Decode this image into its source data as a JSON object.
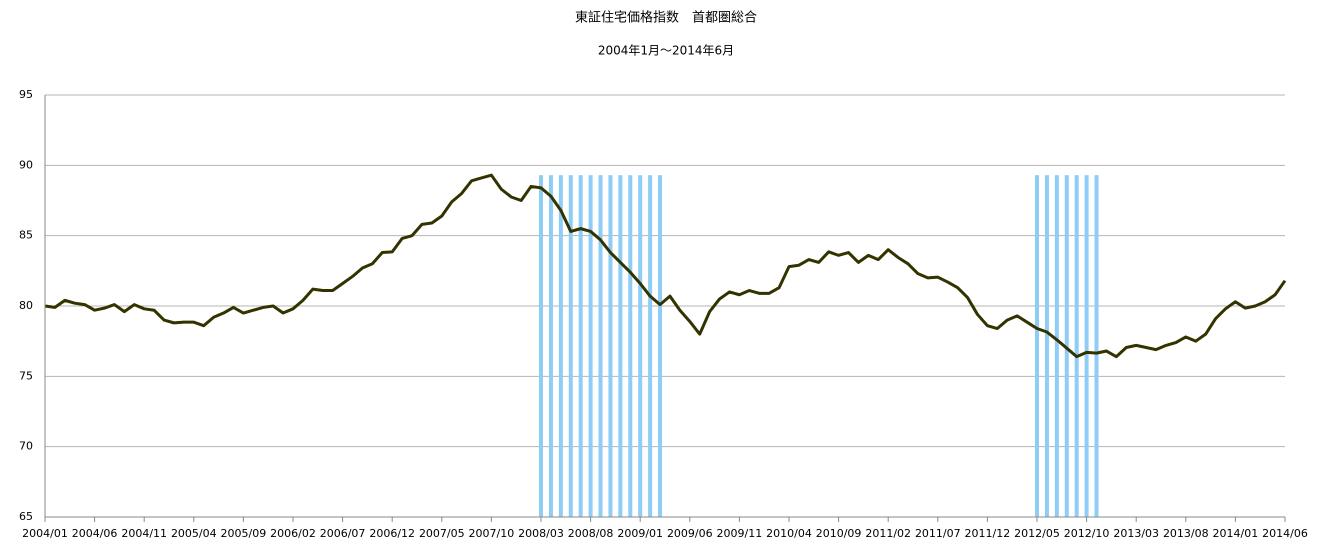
{
  "chart_data": {
    "type": "line",
    "title": "東証住宅価格指数　首都圏総合",
    "subtitle": "2004年1月～2014年6月",
    "categories": [
      "2004/01",
      null,
      null,
      null,
      null,
      "2004/06",
      null,
      null,
      null,
      null,
      "2004/11",
      null,
      null,
      null,
      null,
      "2005/04",
      null,
      null,
      null,
      null,
      "2005/09",
      null,
      null,
      null,
      null,
      "2006/02",
      null,
      null,
      null,
      null,
      "2006/07",
      null,
      null,
      null,
      null,
      "2006/12",
      null,
      null,
      null,
      null,
      "2007/05",
      null,
      null,
      null,
      null,
      "2007/10",
      null,
      null,
      null,
      null,
      "2008/03",
      null,
      null,
      null,
      null,
      "2008/08",
      null,
      null,
      null,
      null,
      "2009/01",
      null,
      null,
      null,
      null,
      "2009/06",
      null,
      null,
      null,
      null,
      "2009/11",
      null,
      null,
      null,
      null,
      "2010/04",
      null,
      null,
      null,
      null,
      "2010/09",
      null,
      null,
      null,
      null,
      "2011/02",
      null,
      null,
      null,
      null,
      "2011/07",
      null,
      null,
      null,
      null,
      "2011/12",
      null,
      null,
      null,
      null,
      "2012/05",
      null,
      null,
      null,
      null,
      "2012/10",
      null,
      null,
      null,
      null,
      "2013/03",
      null,
      null,
      null,
      null,
      "2013/08",
      null,
      null,
      null,
      null,
      "2014/01",
      null,
      null,
      null,
      null,
      "2014/06"
    ],
    "series": [
      {
        "type": "line",
        "color": "#333300",
        "values": [
          80.0,
          79.9,
          80.4,
          80.2,
          80.1,
          79.7,
          79.85,
          80.1,
          79.6,
          80.1,
          79.8,
          79.7,
          79.0,
          78.8,
          78.85,
          78.85,
          78.6,
          79.2,
          79.5,
          79.9,
          79.5,
          79.7,
          79.9,
          80.0,
          79.5,
          79.8,
          80.4,
          81.2,
          81.1,
          81.1,
          81.6,
          82.1,
          82.7,
          83.0,
          83.8,
          83.85,
          84.8,
          85.0,
          85.8,
          85.9,
          86.4,
          87.4,
          88.0,
          88.9,
          89.1,
          89.3,
          88.3,
          87.75,
          87.5,
          88.5,
          88.4,
          87.8,
          86.8,
          85.3,
          85.5,
          85.3,
          84.7,
          83.8,
          83.1,
          82.4,
          81.6,
          80.7,
          80.1,
          80.7,
          79.7,
          78.9,
          78.0,
          79.6,
          80.5,
          81.0,
          80.8,
          81.1,
          80.9,
          80.9,
          81.3,
          82.8,
          82.9,
          83.3,
          83.1,
          83.85,
          83.6,
          83.8,
          83.1,
          83.6,
          83.3,
          84.0,
          83.45,
          83.0,
          82.3,
          82.0,
          82.05,
          81.7,
          81.3,
          80.6,
          79.4,
          78.6,
          78.4,
          79.0,
          79.3,
          78.85,
          78.4,
          78.15,
          77.6,
          77.0,
          76.4,
          76.7,
          76.65,
          76.8,
          76.4,
          77.05,
          77.2,
          77.05,
          76.9,
          77.2,
          77.4,
          77.8,
          77.5,
          78.0,
          79.1,
          79.8,
          80.3,
          79.85,
          80.0,
          80.3,
          80.8,
          81.8
        ]
      },
      {
        "type": "bar",
        "color": "#8ecdf5",
        "values": [
          null,
          null,
          null,
          null,
          null,
          null,
          null,
          null,
          null,
          null,
          null,
          null,
          null,
          null,
          null,
          null,
          null,
          null,
          null,
          null,
          null,
          null,
          null,
          null,
          null,
          null,
          null,
          null,
          null,
          null,
          null,
          null,
          null,
          null,
          null,
          null,
          null,
          null,
          null,
          null,
          null,
          null,
          null,
          null,
          null,
          null,
          null,
          null,
          null,
          null,
          89.3,
          89.3,
          89.3,
          89.3,
          89.3,
          89.3,
          89.3,
          89.3,
          89.3,
          89.3,
          89.3,
          89.3,
          89.3,
          null,
          null,
          null,
          null,
          null,
          null,
          null,
          null,
          null,
          null,
          null,
          null,
          null,
          null,
          null,
          null,
          null,
          null,
          null,
          null,
          null,
          null,
          null,
          null,
          null,
          null,
          null,
          null,
          null,
          null,
          null,
          null,
          null,
          null,
          null,
          null,
          null,
          89.3,
          89.3,
          89.3,
          89.3,
          89.3,
          89.3,
          89.3,
          null,
          null,
          null,
          null,
          null,
          null,
          null,
          null,
          null,
          null,
          null,
          null,
          null,
          null,
          null,
          null,
          null,
          null,
          null
        ]
      }
    ],
    "ylim": [
      65,
      95
    ],
    "yticks": [
      65,
      70,
      75,
      80,
      85,
      90,
      95
    ],
    "grid": true
  }
}
